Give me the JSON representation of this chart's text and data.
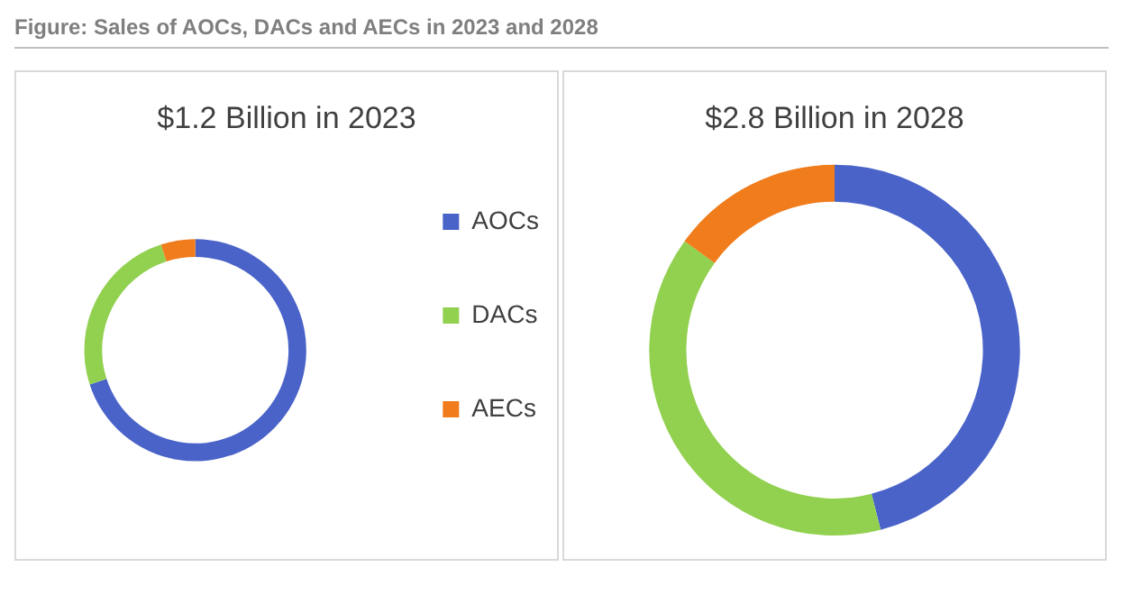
{
  "chart_data": [
    {
      "type": "donut",
      "title": "$1.2 Billion in 2023",
      "annotations": [
        "Figure: Sales of AOCs, DACs and AECs in 2023 and 2028"
      ],
      "categories": [
        "AOCs",
        "DACs",
        "AECs"
      ],
      "values": [
        70,
        25,
        5
      ],
      "colors": [
        "#4a63c8",
        "#92d050",
        "#f07c1c"
      ],
      "legend": "right"
    },
    {
      "type": "donut",
      "title": "$2.8 Billion in 2028",
      "categories": [
        null,
        null,
        null
      ],
      "values": [
        46,
        39,
        15
      ],
      "colors": [
        "#4a63c8",
        "#92d050",
        "#f07c1c"
      ]
    }
  ]
}
